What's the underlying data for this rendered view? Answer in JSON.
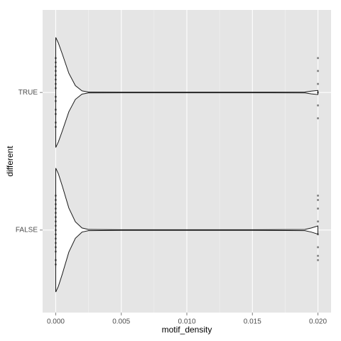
{
  "chart_data": {
    "type": "violin",
    "x_label": "motif_density",
    "y_label": "different",
    "categories": [
      "FALSE",
      "TRUE"
    ],
    "xlim": [
      -0.001,
      0.021
    ],
    "xticks": [
      {
        "value": 0,
        "label": "0.000"
      },
      {
        "value": 0.005,
        "label": "0.005"
      },
      {
        "value": 0.01,
        "label": "0.010"
      },
      {
        "value": 0.015,
        "label": "0.015"
      },
      {
        "value": 0.02,
        "label": "0.020"
      }
    ],
    "minor_xticks": [
      0.0025,
      0.0075,
      0.0125,
      0.0175
    ],
    "grid": true,
    "background": "#e5e5e5",
    "line_color": "#1a1a1a",
    "point_color": "#000000",
    "violins": [
      {
        "category": "FALSE",
        "x": [
          0,
          0.0002,
          0.0005,
          0.001,
          0.0015,
          0.002,
          0.0025,
          0.005,
          0.015,
          0.019,
          0.0195,
          0.02
        ],
        "width": [
          0.45,
          0.41,
          0.32,
          0.16,
          0.06,
          0.015,
          0.004,
          0.002,
          0.002,
          0.004,
          0.015,
          0.03
        ],
        "points": [
          0,
          0,
          0,
          0,
          0,
          0,
          0,
          0,
          0,
          0,
          0,
          0,
          0,
          0,
          0,
          0,
          0.02,
          0.02,
          0.02,
          0.02,
          0.02,
          0.02,
          0.02,
          0.02
        ]
      },
      {
        "category": "TRUE",
        "x": [
          0,
          0.0002,
          0.0005,
          0.001,
          0.0015,
          0.002,
          0.0025,
          0.005,
          0.015,
          0.019,
          0.0195,
          0.02
        ],
        "width": [
          0.4,
          0.36,
          0.28,
          0.14,
          0.05,
          0.012,
          0.003,
          0.002,
          0.002,
          0.003,
          0.01,
          0.015
        ],
        "points": [
          0,
          0,
          0,
          0,
          0,
          0,
          0,
          0,
          0,
          0,
          0,
          0,
          0,
          0,
          0.02,
          0.02,
          0.02,
          0.02,
          0.02,
          0.02
        ]
      }
    ]
  }
}
